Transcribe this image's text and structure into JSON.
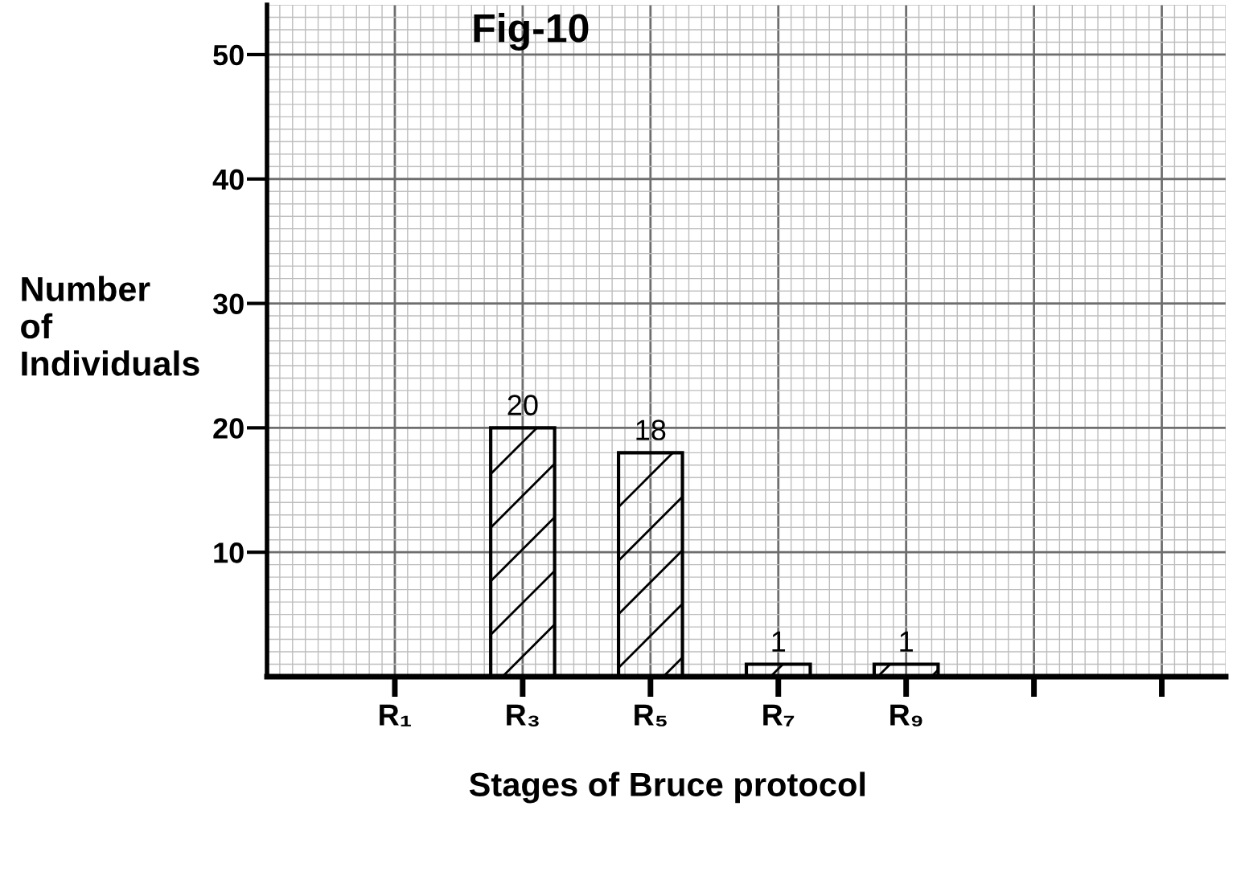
{
  "chart_data": {
    "type": "bar",
    "title": "Fig-10",
    "xlabel": "Stages of Bruce protocol",
    "ylabel": "Number\nof\nIndividuals",
    "categories": [
      "R₁",
      "R₃",
      "R₅",
      "R₇",
      "R₉",
      null,
      null
    ],
    "values": [
      null,
      20,
      18,
      1,
      1,
      null,
      null
    ],
    "value_labels": [
      null,
      "20",
      "18",
      "1",
      "1",
      null,
      null
    ],
    "color": "#000000",
    "ylim": [
      0,
      54
    ],
    "yticks": [
      10,
      20,
      30,
      40,
      50
    ],
    "grid": true
  }
}
